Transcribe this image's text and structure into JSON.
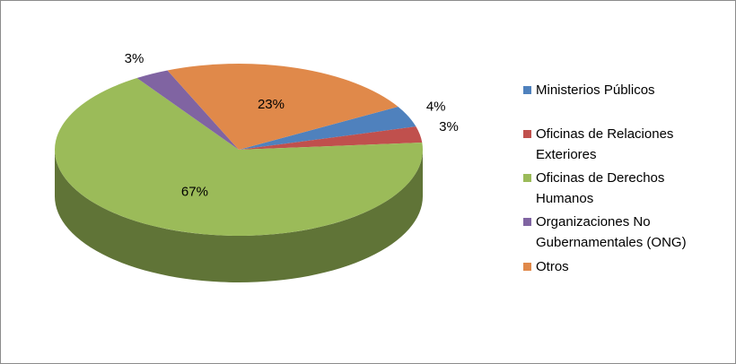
{
  "chart_data": {
    "type": "pie",
    "categories": [
      "Ministerios Públicos",
      "Oficinas de Relaciones Exteriores",
      "Oficinas de Derechos Humanos",
      "Organizaciones No Gubernamentales (ONG)",
      "Otros"
    ],
    "values": [
      4,
      3,
      67,
      3,
      23
    ],
    "value_labels": [
      "4%",
      "3%",
      "67%",
      "3%",
      "23%"
    ],
    "colors": [
      "#4f81bd",
      "#c0504d",
      "#9bbb59",
      "#8064a2",
      "#e0894a"
    ],
    "legend": "right"
  }
}
